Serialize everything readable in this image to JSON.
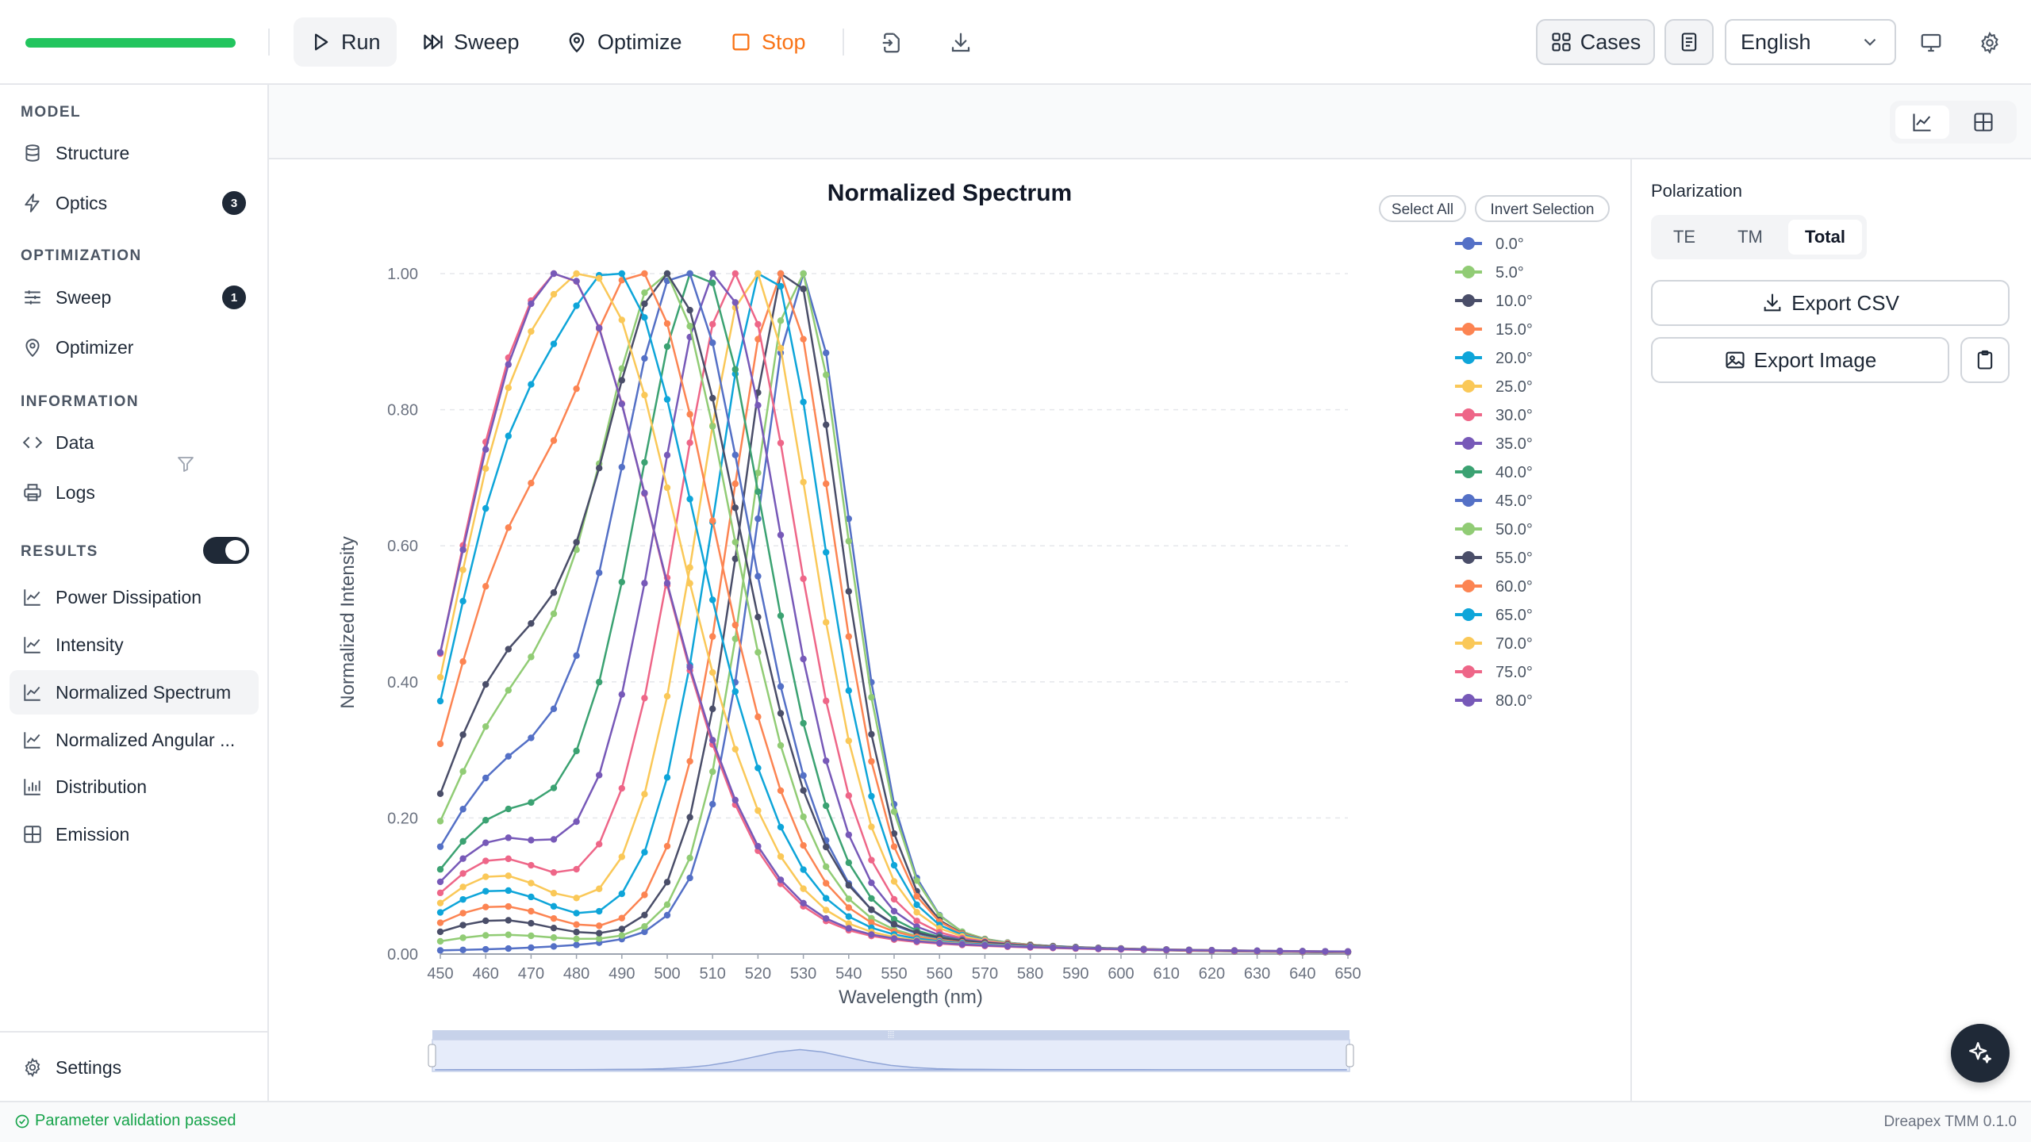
{
  "toolbar": {
    "run_label": "Run",
    "sweep_label": "Sweep",
    "optimize_label": "Optimize",
    "stop_label": "Stop",
    "cases_label": "Cases",
    "language": "English",
    "progress": 1.0
  },
  "sidebar": {
    "model_header": "MODEL",
    "structure": "Structure",
    "optics": "Optics",
    "optics_badge": "3",
    "optimization_header": "OPTIMIZATION",
    "sweep": "Sweep",
    "sweep_badge": "1",
    "optimizer": "Optimizer",
    "information_header": "INFORMATION",
    "data": "Data",
    "logs": "Logs",
    "results_header": "RESULTS",
    "results_toggle_on": true,
    "power_dissipation": "Power Dissipation",
    "intensity": "Intensity",
    "normalized_spectrum": "Normalized Spectrum",
    "normalized_angular": "Normalized Angular ...",
    "distribution": "Distribution",
    "emission": "Emission",
    "settings": "Settings"
  },
  "right_panel": {
    "polarization_label": "Polarization",
    "te": "TE",
    "tm": "TM",
    "total": "Total",
    "selected": "Total",
    "export_csv": "Export CSV",
    "export_image": "Export Image"
  },
  "chart_controls": {
    "select_all": "Select All",
    "invert_selection": "Invert Selection"
  },
  "status": {
    "message": "Parameter validation passed",
    "version": "Dreapex TMM 0.1.0"
  },
  "chart_data": {
    "type": "line",
    "title": "Normalized Spectrum",
    "xlabel": "Wavelength (nm)",
    "ylabel": "Normalized Intensity",
    "xlim": [
      450,
      650
    ],
    "ylim": [
      0,
      1
    ],
    "x_ticks": [
      450,
      460,
      470,
      480,
      490,
      500,
      510,
      520,
      530,
      540,
      550,
      560,
      570,
      580,
      590,
      600,
      610,
      620,
      630,
      640,
      650
    ],
    "y_ticks": [
      "0.00",
      "0.20",
      "0.40",
      "0.60",
      "0.80",
      "1.00"
    ],
    "grid": "horizontal dashed",
    "legend_position": "right",
    "model": "per-angle emission peak (nm), peak FWHM (nm) and secondary shoulder amplitude; the curve is drawn from these values",
    "series": [
      {
        "name": "0.0°",
        "color": "#5470c6",
        "peak": 530,
        "width": 36,
        "shoulder": 0.0
      },
      {
        "name": "5.0°",
        "color": "#91cc75",
        "peak": 529,
        "width": 37,
        "shoulder": 0.02
      },
      {
        "name": "10.0°",
        "color": "#4a4e69",
        "peak": 527,
        "width": 38,
        "shoulder": 0.04
      },
      {
        "name": "15.0°",
        "color": "#fc8452",
        "peak": 525,
        "width": 40,
        "shoulder": 0.06
      },
      {
        "name": "20.0°",
        "color": "#0ea5d9",
        "peak": 522,
        "width": 42,
        "shoulder": 0.08
      },
      {
        "name": "25.0°",
        "color": "#fac858",
        "peak": 519,
        "width": 44,
        "shoulder": 0.1
      },
      {
        "name": "30.0°",
        "color": "#ee6688",
        "peak": 515,
        "width": 46,
        "shoulder": 0.12
      },
      {
        "name": "35.0°",
        "color": "#7759b8",
        "peak": 511,
        "width": 48,
        "shoulder": 0.14
      },
      {
        "name": "40.0°",
        "color": "#3ba272",
        "peak": 507,
        "width": 50,
        "shoulder": 0.16
      },
      {
        "name": "45.0°",
        "color": "#5470c6",
        "peak": 503,
        "width": 52,
        "shoulder": 0.2
      },
      {
        "name": "50.0°",
        "color": "#91cc75",
        "peak": 499,
        "width": 54,
        "shoulder": 0.24
      },
      {
        "name": "55.0°",
        "color": "#4a4e69",
        "peak": 500,
        "width": 56,
        "shoulder": 0.3
      },
      {
        "name": "60.0°",
        "color": "#fc8452",
        "peak": 494,
        "width": 58,
        "shoulder": 0.36
      },
      {
        "name": "65.0°",
        "color": "#0ea5d9",
        "peak": 490,
        "width": 60,
        "shoulder": 0.4
      },
      {
        "name": "70.0°",
        "color": "#fac858",
        "peak": 486,
        "width": 62,
        "shoulder": 0.38
      },
      {
        "name": "75.0°",
        "color": "#ee6688",
        "peak": 481,
        "width": 64,
        "shoulder": 0.3
      },
      {
        "name": "80.0°",
        "color": "#7759b8",
        "peak": 480,
        "width": 66,
        "shoulder": 0.22
      }
    ]
  }
}
